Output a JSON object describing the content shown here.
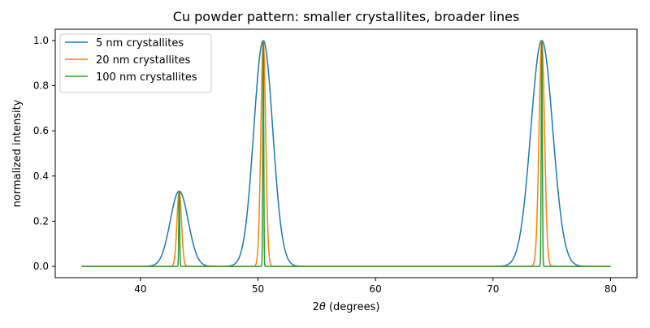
{
  "chart_data": {
    "type": "line",
    "title": "Cu powder pattern: smaller crystallites, broader lines",
    "xlabel_prefix": "2",
    "xlabel_symbol": "θ",
    "xlabel_suffix": " (degrees)",
    "ylabel": "normalized intensity",
    "xlim": [
      32.75,
      82.25
    ],
    "ylim": [
      -0.05,
      1.05
    ],
    "x_range": [
      35,
      80
    ],
    "xticks": [
      40,
      50,
      60,
      70,
      80
    ],
    "yticks": [
      0.0,
      0.2,
      0.4,
      0.6,
      0.8,
      1.0
    ],
    "ytick_labels": [
      "0.0",
      "0.2",
      "0.4",
      "0.6",
      "0.8",
      "1.0"
    ],
    "legend_position": "upper-left",
    "grid": false,
    "peaks": [
      {
        "two_theta": 43.3,
        "intensity": 0.333
      },
      {
        "two_theta": 50.45,
        "intensity": 1.0
      },
      {
        "two_theta": 74.15,
        "intensity": 1.0
      }
    ],
    "series": [
      {
        "name": "5 nm crystallites",
        "color": "#1f77b4",
        "fwhm": [
          1.8,
          1.9,
          2.2
        ]
      },
      {
        "name": "20 nm crystallites",
        "color": "#ff7f0e",
        "fwhm": [
          0.45,
          0.48,
          0.55
        ]
      },
      {
        "name": "100 nm crystallites",
        "color": "#2ca02c",
        "fwhm": [
          0.09,
          0.095,
          0.11
        ]
      }
    ]
  }
}
